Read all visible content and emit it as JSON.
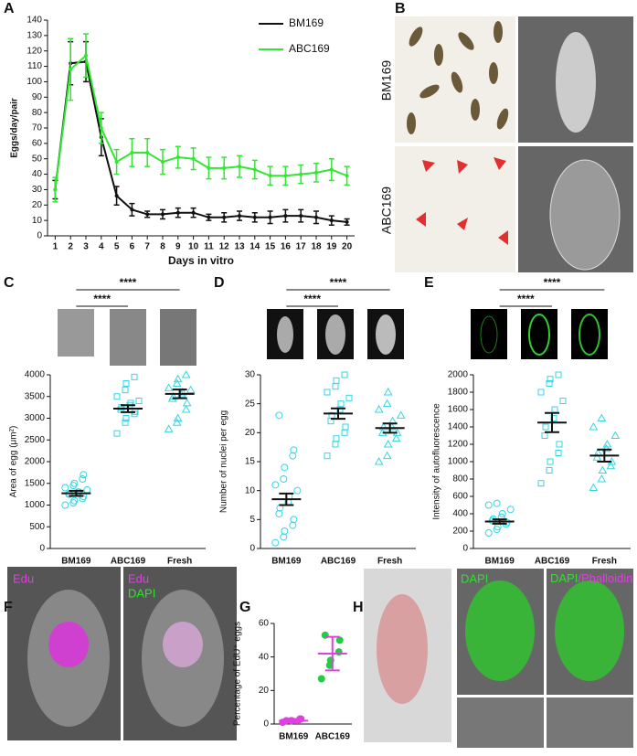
{
  "figure": {
    "panel_labels": [
      "A",
      "B",
      "C",
      "D",
      "E",
      "F",
      "G",
      "H"
    ],
    "B_labels": [
      "BM169",
      "ABC169"
    ],
    "F_labels": [
      "Edu",
      "Edu",
      "DAPI"
    ],
    "H_labels": [
      "DAPI",
      "DAPI",
      "/Phalloidin"
    ]
  },
  "chart_data": [
    {
      "type": "line",
      "x_label": "Days in vitro",
      "y_label": "Eggs/day/pair",
      "x": [
        1,
        2,
        3,
        4,
        5,
        6,
        7,
        8,
        9,
        10,
        11,
        12,
        13,
        14,
        15,
        16,
        17,
        18,
        19,
        20
      ],
      "xlim": [
        0.5,
        20.5
      ],
      "xticks": [
        1,
        2,
        3,
        4,
        5,
        6,
        7,
        8,
        9,
        10,
        11,
        12,
        13,
        14,
        15,
        16,
        17,
        18,
        19,
        20
      ],
      "ylim": [
        0,
        140
      ],
      "yticks": [
        0,
        10,
        20,
        30,
        40,
        50,
        60,
        70,
        80,
        90,
        100,
        110,
        120,
        130,
        140
      ],
      "legend": "top-right",
      "series": [
        {
          "name": "BM169",
          "color": "#111111",
          "values": [
            30,
            112,
            113,
            64,
            26,
            17,
            14,
            14,
            15,
            15,
            12,
            12,
            13,
            12,
            12,
            13,
            13,
            12,
            10,
            9
          ],
          "errors": [
            6,
            14,
            13,
            12,
            6,
            4,
            2,
            3,
            3,
            3,
            2,
            3,
            3,
            3,
            4,
            4,
            4,
            4,
            3,
            2
          ]
        },
        {
          "name": "ABC169",
          "color": "#33e633",
          "values": [
            30,
            108,
            117,
            70,
            48,
            54,
            54,
            48,
            51,
            50,
            44,
            44,
            45,
            43,
            39,
            39,
            40,
            41,
            43,
            39
          ],
          "errors": [
            8,
            20,
            14,
            10,
            8,
            9,
            9,
            8,
            7,
            7,
            7,
            7,
            7,
            6,
            6,
            6,
            6,
            6,
            7,
            6
          ]
        }
      ]
    },
    {
      "type": "dot",
      "y_label": "Area of egg (μm²)",
      "categories": [
        "BM169",
        "ABC169",
        "Fresh"
      ],
      "ylim": [
        0,
        4000
      ],
      "yticks": [
        0,
        500,
        1000,
        1500,
        2000,
        2500,
        3000,
        3500,
        4000
      ],
      "values": [
        1270,
        3220,
        3560
      ],
      "errors": [
        60,
        80,
        100
      ],
      "points": [
        [
          1000,
          1050,
          1100,
          1150,
          1200,
          1250,
          1250,
          1300,
          1300,
          1350,
          1400,
          1450,
          1500,
          1600,
          1700
        ],
        [
          2650,
          2900,
          3000,
          3100,
          3150,
          3200,
          3250,
          3300,
          3350,
          3400,
          3500,
          3650,
          3800,
          3950
        ],
        [
          2750,
          2900,
          3000,
          3200,
          3350,
          3450,
          3500,
          3550,
          3600,
          3650,
          3700,
          3800,
          3900,
          4000
        ]
      ],
      "markers": [
        "circle",
        "square",
        "triangle"
      ],
      "point_colors": [
        "#36d6e6",
        "#36d6e6",
        "#36d6e6"
      ],
      "bar_color": "#111111",
      "annotations": [
        "****",
        "****"
      ]
    },
    {
      "type": "dot",
      "y_label": "Number of nuclei per egg",
      "categories": [
        "BM169",
        "ABC169",
        "Fresh"
      ],
      "ylim": [
        0,
        30
      ],
      "yticks": [
        0,
        5,
        10,
        15,
        20,
        25,
        30
      ],
      "values": [
        8.5,
        23.3,
        20.8
      ],
      "errors": [
        1.0,
        0.9,
        0.8
      ],
      "points": [
        [
          1,
          2,
          3,
          4,
          5,
          6,
          7,
          8,
          9,
          10,
          11,
          12,
          14,
          16,
          17,
          23
        ],
        [
          16,
          18,
          19,
          20,
          21,
          22,
          23,
          24,
          25,
          26,
          27,
          28,
          29,
          30
        ],
        [
          15,
          16,
          18,
          19,
          20,
          20,
          21,
          21,
          22,
          23,
          24,
          25,
          27
        ]
      ],
      "markers": [
        "circle",
        "square",
        "triangle"
      ],
      "point_colors": [
        "#36d6e6",
        "#36d6e6",
        "#36d6e6"
      ],
      "bar_color": "#111111",
      "annotations": [
        "****",
        "****"
      ]
    },
    {
      "type": "dot",
      "y_label": "Intensity of autofluorescence",
      "categories": [
        "BM169",
        "ABC169",
        "Fresh"
      ],
      "ylim": [
        0,
        2000
      ],
      "yticks": [
        0,
        200,
        400,
        600,
        800,
        1000,
        1200,
        1400,
        1600,
        1800,
        2000
      ],
      "values": [
        310,
        1450,
        1070
      ],
      "errors": [
        25,
        110,
        70
      ],
      "points": [
        [
          180,
          220,
          250,
          280,
          300,
          320,
          340,
          360,
          400,
          450,
          500,
          520
        ],
        [
          750,
          900,
          1000,
          1100,
          1200,
          1300,
          1400,
          1500,
          1600,
          1700,
          1800,
          1900,
          1950,
          2000
        ],
        [
          700,
          800,
          900,
          950,
          1000,
          1050,
          1100,
          1150,
          1200,
          1300,
          1400,
          1500
        ]
      ],
      "markers": [
        "circle",
        "square",
        "triangle"
      ],
      "point_colors": [
        "#36d6e6",
        "#36d6e6",
        "#36d6e6"
      ],
      "bar_color": "#111111",
      "annotations": [
        "****",
        "****"
      ]
    },
    {
      "type": "dot",
      "y_label": "Percentage of EdU⁺ eggs",
      "categories": [
        "BM169",
        "ABC169"
      ],
      "ylim": [
        0,
        60
      ],
      "yticks": [
        0,
        20,
        40,
        60
      ],
      "values": [
        2,
        42
      ],
      "errors": [
        1,
        10
      ],
      "points": [
        [
          1,
          2,
          2,
          3,
          3,
          2
        ],
        [
          27,
          35,
          38,
          43,
          50,
          53
        ]
      ],
      "markers": [
        "circle",
        "circle"
      ],
      "point_colors": [
        "#e040e0",
        "#22cc44"
      ],
      "bar_color": "#e040e0"
    }
  ]
}
